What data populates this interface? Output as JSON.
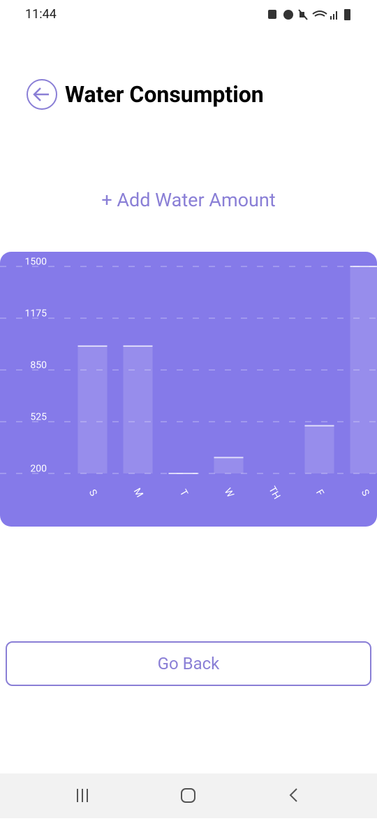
{
  "status_bar": {
    "time": "11:44"
  },
  "header": {
    "title": "Water Consumption"
  },
  "add_button": "+ Add Water Amount",
  "chart_data": {
    "type": "bar",
    "categories": [
      "S",
      "M",
      "T",
      "W",
      "TH",
      "F",
      "S"
    ],
    "values": [
      1000,
      1000,
      200,
      300,
      null,
      500,
      1500
    ],
    "color": "#ffffff",
    "ylim": [
      200,
      1500
    ],
    "yticks": [
      200,
      525,
      850,
      1175,
      1500
    ],
    "grid": true
  },
  "go_back": "Go Back"
}
